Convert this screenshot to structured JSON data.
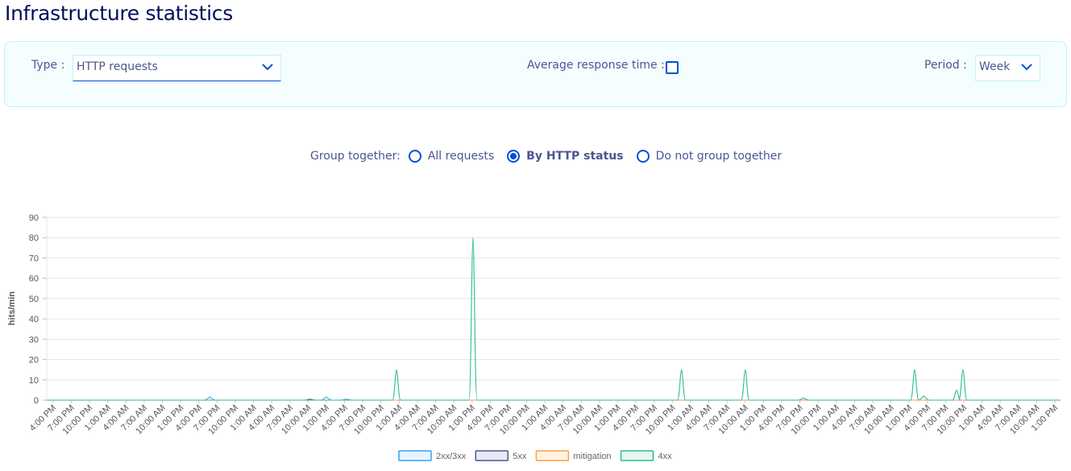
{
  "title": "Infrastructure statistics",
  "filters": {
    "type_label": "Type :",
    "type_value": "HTTP requests",
    "avg_label": "Average response time :",
    "avg_checked": false,
    "period_label": "Period :",
    "period_value": "Week"
  },
  "group": {
    "label": "Group together:",
    "options": [
      {
        "label": "All requests",
        "selected": false
      },
      {
        "label": "By HTTP status",
        "selected": true
      },
      {
        "label": "Do not group together",
        "selected": false
      }
    ]
  },
  "chart_data": {
    "type": "line",
    "ylabel": "hits/min",
    "xlabel": "",
    "ylim": [
      0,
      90
    ],
    "yticks": [
      0,
      10,
      20,
      30,
      40,
      50,
      60,
      70,
      80,
      90
    ],
    "grid": true,
    "legend_placement": "bottom",
    "categories": [
      "4:00 PM",
      "7:00 PM",
      "10:00 PM",
      "1:00 AM",
      "4:00 AM",
      "7:00 AM",
      "10:00 AM",
      "1:00 PM",
      "4:00 PM",
      "7:00 PM",
      "10:00 PM",
      "1:00 AM",
      "4:00 AM",
      "7:00 AM",
      "10:00 AM",
      "1:00 PM",
      "4:00 PM",
      "7:00 PM",
      "10:00 PM",
      "1:00 AM",
      "4:00 AM",
      "7:00 AM",
      "10:00 AM",
      "1:00 PM",
      "4:00 PM",
      "7:00 PM",
      "10:00 PM",
      "1:00 AM",
      "4:00 AM",
      "7:00 AM",
      "10:00 AM",
      "1:00 PM",
      "4:00 PM",
      "7:00 PM",
      "10:00 PM",
      "1:00 AM",
      "4:00 AM",
      "7:00 AM",
      "10:00 AM",
      "1:00 PM",
      "4:00 PM",
      "7:00 PM",
      "10:00 PM",
      "1:00 AM",
      "4:00 AM",
      "7:00 AM",
      "10:00 AM",
      "1:00 PM",
      "4:00 PM",
      "7:00 PM",
      "10:00 PM",
      "1:00 AM",
      "4:00 AM",
      "7:00 AM",
      "10:00 AM",
      "1:00 PM"
    ],
    "series": [
      {
        "name": "2xx/3xx",
        "color": "#36a2eb",
        "fill": "#e6f4fd",
        "peaks": [
          [
            8.6,
            1.5
          ],
          [
            15,
            1.5
          ],
          [
            16.1,
            0.5
          ]
        ]
      },
      {
        "name": "5xx",
        "color": "#4d5592",
        "fill": "#e8eaf4",
        "peaks": [
          [
            14.1,
            0.5
          ]
        ]
      },
      {
        "name": "mitigation",
        "color": "#ff9f40",
        "fill": "#fff2e5",
        "peaks": []
      },
      {
        "name": "4xx",
        "color": "#2bbd8e",
        "fill": "#e6f7f1",
        "peaks": [
          [
            18.85,
            15
          ],
          [
            23.05,
            80
          ],
          [
            34.5,
            15
          ],
          [
            38.0,
            15
          ],
          [
            41.2,
            1
          ],
          [
            47.3,
            15
          ],
          [
            47.8,
            2
          ],
          [
            49.6,
            5
          ],
          [
            49.95,
            15
          ]
        ]
      }
    ]
  }
}
